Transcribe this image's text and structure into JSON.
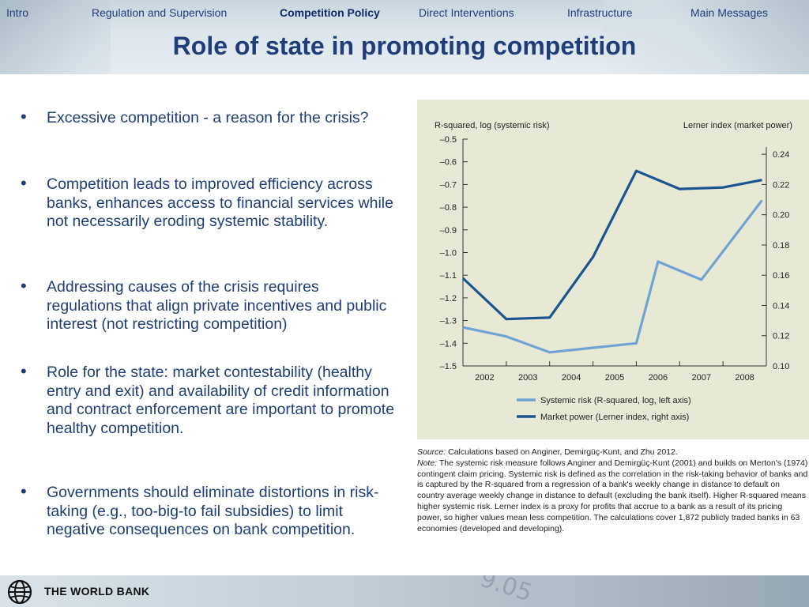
{
  "nav": {
    "items": [
      {
        "label": "Intro",
        "active": false
      },
      {
        "label": "Regulation  and Supervision",
        "active": false
      },
      {
        "label": "Competition Policy",
        "active": true
      },
      {
        "label": "Direct Interventions",
        "active": false
      },
      {
        "label": "Infrastructure",
        "active": false
      },
      {
        "label": "Main Messages",
        "active": false
      }
    ]
  },
  "slide": {
    "title": "Role of state in promoting competition",
    "bullets": [
      "Excessive competition - a reason for the crisis?",
      "Competition leads to improved efficiency across banks, enhances access to financial services while not necessarily eroding systemic stability.",
      "Addressing causes of the crisis requires regulations that align private incentives and public interest (not restricting competition)",
      "Role for the state: market contestability (healthy entry and exit) and availability of credit information and contract enforcement are important to promote healthy competition.",
      "Governments should eliminate distortions in risk-taking (e.g., too-big-to fail subsidies) to limit negative consequences on bank competition."
    ]
  },
  "chart_data": {
    "type": "line",
    "title": "",
    "left_axis_label": "R-squared, log (systemic risk)",
    "right_axis_label": "Lerner index (market power)",
    "categories": [
      "2002",
      "2003",
      "2004",
      "2005",
      "2006",
      "2007",
      "2008"
    ],
    "ylim_left": [
      -1.5,
      -0.5
    ],
    "ylim_right": [
      0.1,
      0.25
    ],
    "yticks_left": [
      "–0.5",
      "–0.6",
      "–0.7",
      "–0.8",
      "–0.9",
      "–1.0",
      "–1.1",
      "–1.2",
      "–1.3",
      "–1.4",
      "–1.5"
    ],
    "yticks_right": [
      "0.24",
      "0.22",
      "0.20",
      "0.18",
      "0.16",
      "0.14",
      "0.12",
      "0.10"
    ],
    "grid": false,
    "legend_position": "bottom",
    "series": [
      {
        "name": "Systemic risk (R-squared, log, left axis)",
        "axis": "left",
        "color": "#6fa3d4",
        "x": [
          2001.5,
          2002.5,
          2003.5,
          2004.5,
          2005.5,
          2006.0,
          2007.0,
          2008.4
        ],
        "values": [
          -1.33,
          -1.37,
          -1.44,
          -1.42,
          -1.4,
          -1.04,
          -1.12,
          -0.77
        ]
      },
      {
        "name": "Market power (Lerner index, right axis)",
        "axis": "right",
        "color": "#1a5491",
        "x": [
          2001.5,
          2002.5,
          2003.5,
          2004.5,
          2005.5,
          2006.5,
          2007.5,
          2008.4
        ],
        "values": [
          0.158,
          0.131,
          0.132,
          0.172,
          0.229,
          0.217,
          0.218,
          0.223
        ]
      }
    ]
  },
  "source": {
    "source_label": "Source:",
    "source_text": " Calculations based on Anginer, Demirgüç-Kunt, and Zhu 2012.",
    "note_label": "Note:",
    "note_text": " The systemic risk measure follows Anginer and Demirgüç-Kunt (2001) and builds on Merton's (1974) contingent claim pricing. Systemic risk is defined as the correlation in the risk-taking behavior of banks and is captured by the R-squared from a regression of a bank's weekly change in distance to default on country average weekly change in distance to default (excluding the bank itself). Higher R-squared means higher systemic risk. Lerner index is a proxy for profits that accrue to a bank as a result of its pricing power, so higher values mean less competition. The calculations cover 1,872 publicly traded banks in 63 economies (developed and developing)."
  },
  "footer": {
    "org_name": "THE WORLD BANK",
    "logo_icon": "world-bank-globe-icon"
  }
}
